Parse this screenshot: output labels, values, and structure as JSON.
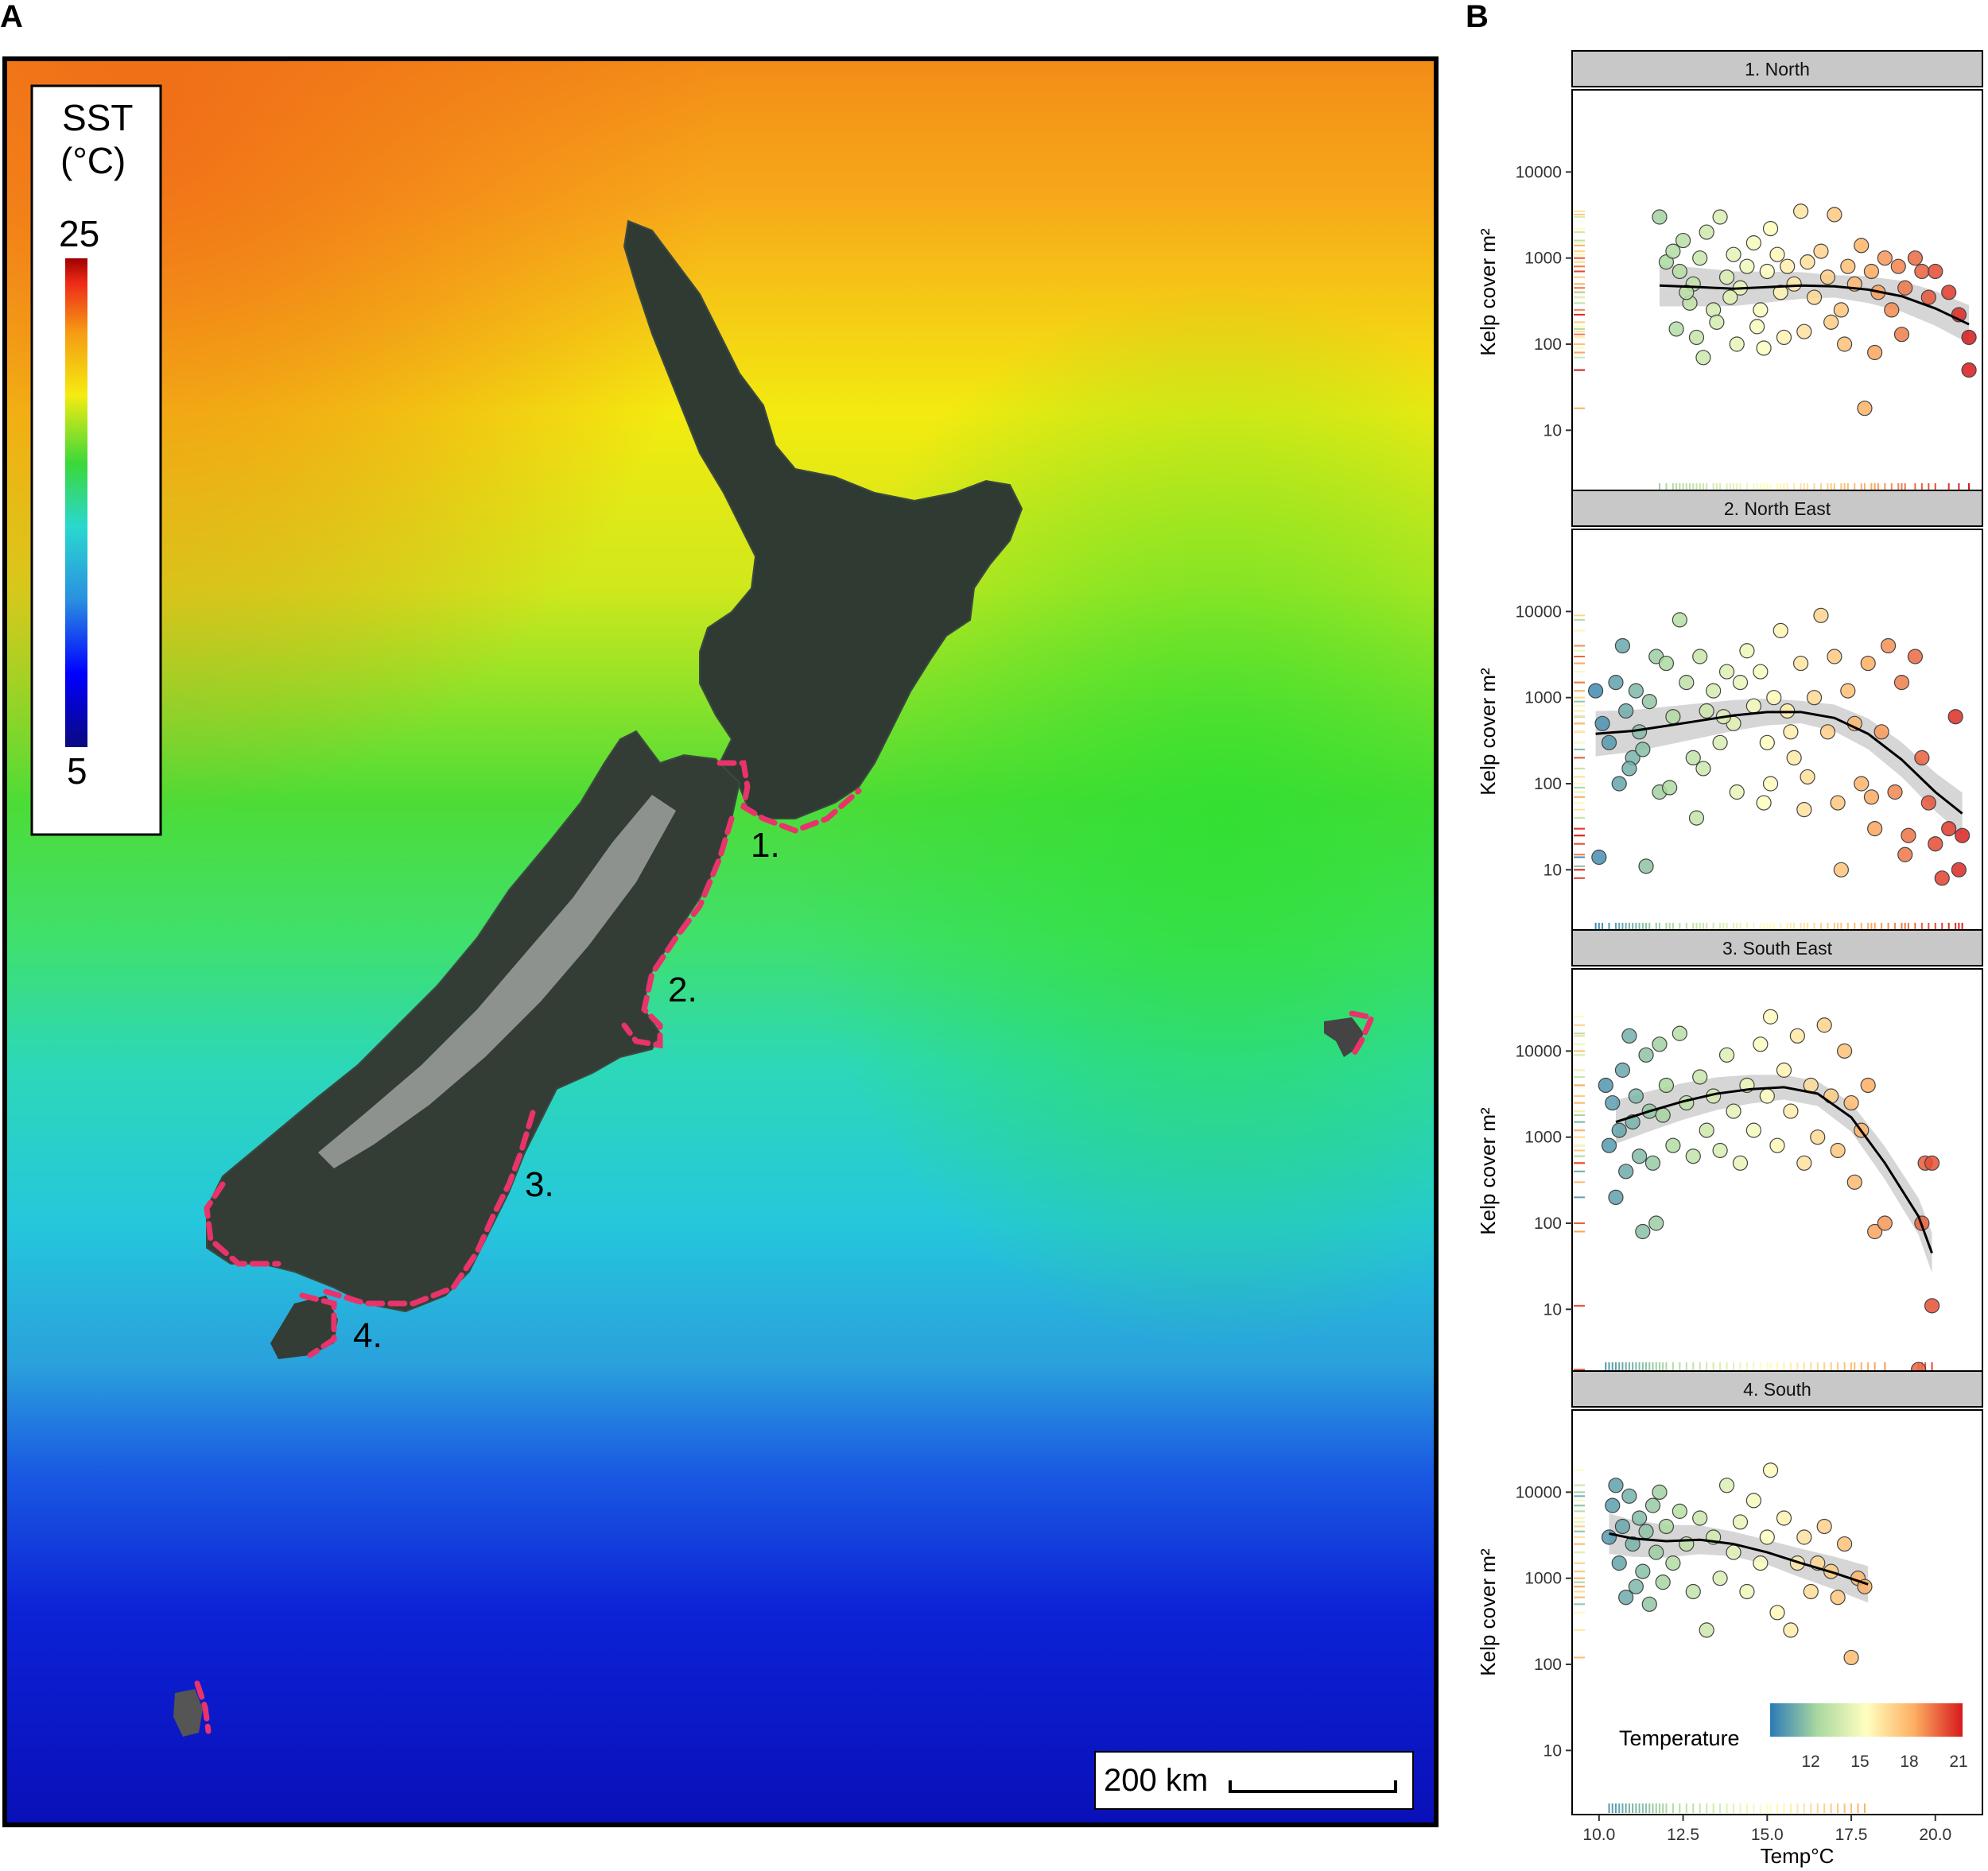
{
  "panel_a": {
    "letter": "A",
    "sst_legend": {
      "title_line1": "SST",
      "title_line2": "(°C)",
      "max_label": "25",
      "min_label": "5"
    },
    "region_labels": [
      "1.",
      "2.",
      "3.",
      "4."
    ],
    "scale_bar_label": "200 km"
  },
  "panel_b": {
    "letter": "B",
    "ylabel": "Kelp cover m²",
    "xlabel": "Temp°C",
    "legend": {
      "title": "Temperature",
      "ticks": [
        "12",
        "15",
        "18",
        "21"
      ]
    },
    "x_ticks": [
      "10.0",
      "12.5",
      "15.0",
      "17.5",
      "20.0"
    ],
    "y_ticks": [
      "10",
      "100",
      "1000",
      "10000"
    ]
  },
  "colors": {
    "route_pink": "#e8336b",
    "strip_bg": "#c8c8c8",
    "smooth_line": "#000000",
    "ci_band": "#bbbbbb"
  },
  "chart_data": [
    {
      "type": "scatter",
      "title": "1. North",
      "xlabel": "Temp°C",
      "ylabel": "Kelp cover m²",
      "xlim": [
        9.2,
        21.4
      ],
      "ylim": [
        1.8,
        90000
      ],
      "yscale": "log",
      "points": [
        [
          11.8,
          3000
        ],
        [
          12.0,
          900
        ],
        [
          12.2,
          1200
        ],
        [
          12.4,
          700
        ],
        [
          12.5,
          1600
        ],
        [
          12.7,
          300
        ],
        [
          12.8,
          500
        ],
        [
          13.0,
          1000
        ],
        [
          13.2,
          2000
        ],
        [
          13.4,
          250
        ],
        [
          13.6,
          3000
        ],
        [
          13.8,
          600
        ],
        [
          14.0,
          1100
        ],
        [
          14.2,
          450
        ],
        [
          14.4,
          800
        ],
        [
          14.6,
          1500
        ],
        [
          14.8,
          250
        ],
        [
          15.0,
          700
        ],
        [
          15.1,
          2200
        ],
        [
          15.3,
          1100
        ],
        [
          15.4,
          400
        ],
        [
          15.6,
          800
        ],
        [
          15.8,
          500
        ],
        [
          16.0,
          3500
        ],
        [
          16.2,
          900
        ],
        [
          16.4,
          350
        ],
        [
          16.6,
          1200
        ],
        [
          16.8,
          600
        ],
        [
          17.0,
          3200
        ],
        [
          17.2,
          250
        ],
        [
          17.4,
          800
        ],
        [
          17.6,
          500
        ],
        [
          17.8,
          1400
        ],
        [
          17.9,
          18
        ],
        [
          18.1,
          700
        ],
        [
          18.3,
          400
        ],
        [
          18.5,
          1000
        ],
        [
          18.7,
          250
        ],
        [
          18.9,
          800
        ],
        [
          19.1,
          450
        ],
        [
          19.4,
          1000
        ],
        [
          19.6,
          700
        ],
        [
          19.8,
          350
        ],
        [
          20.0,
          700
        ],
        [
          20.4,
          400
        ],
        [
          20.7,
          220
        ],
        [
          21.0,
          120
        ],
        [
          21.0,
          50
        ],
        [
          12.3,
          150
        ],
        [
          12.9,
          120
        ],
        [
          13.5,
          180
        ],
        [
          14.1,
          100
        ],
        [
          14.7,
          160
        ],
        [
          15.5,
          120
        ],
        [
          16.1,
          140
        ],
        [
          16.9,
          180
        ],
        [
          17.3,
          100
        ],
        [
          18.2,
          80
        ],
        [
          19.0,
          130
        ],
        [
          13.1,
          70
        ],
        [
          14.9,
          90
        ],
        [
          12.6,
          400
        ],
        [
          13.9,
          350
        ]
      ],
      "smooth": {
        "x": [
          11.8,
          13.0,
          14.0,
          15.0,
          16.0,
          17.0,
          18.0,
          19.0,
          20.0,
          21.0
        ],
        "y": [
          480,
          460,
          440,
          460,
          480,
          470,
          430,
          360,
          260,
          170
        ]
      }
    },
    {
      "type": "scatter",
      "title": "2. North East",
      "xlabel": "Temp°C",
      "ylabel": "Kelp cover m²",
      "xlim": [
        9.2,
        21.4
      ],
      "ylim": [
        1.8,
        90000
      ],
      "yscale": "log",
      "points": [
        [
          9.9,
          1200
        ],
        [
          10.0,
          14
        ],
        [
          10.1,
          500
        ],
        [
          10.3,
          300
        ],
        [
          10.5,
          1500
        ],
        [
          10.6,
          100
        ],
        [
          10.7,
          4000
        ],
        [
          10.8,
          700
        ],
        [
          11.0,
          200
        ],
        [
          11.1,
          1200
        ],
        [
          11.2,
          400
        ],
        [
          11.4,
          11
        ],
        [
          11.5,
          900
        ],
        [
          11.7,
          3000
        ],
        [
          11.8,
          80
        ],
        [
          12.0,
          2500
        ],
        [
          12.2,
          600
        ],
        [
          12.4,
          8000
        ],
        [
          12.6,
          1500
        ],
        [
          12.8,
          200
        ],
        [
          13.0,
          3000
        ],
        [
          13.2,
          700
        ],
        [
          13.4,
          1200
        ],
        [
          13.6,
          300
        ],
        [
          13.8,
          2000
        ],
        [
          14.0,
          500
        ],
        [
          14.2,
          1500
        ],
        [
          14.4,
          3500
        ],
        [
          14.6,
          800
        ],
        [
          14.8,
          2000
        ],
        [
          15.0,
          300
        ],
        [
          15.2,
          1000
        ],
        [
          15.4,
          6000
        ],
        [
          15.6,
          700
        ],
        [
          15.8,
          200
        ],
        [
          16.0,
          2500
        ],
        [
          16.2,
          120
        ],
        [
          16.4,
          1000
        ],
        [
          16.6,
          9000
        ],
        [
          16.8,
          400
        ],
        [
          17.0,
          3000
        ],
        [
          17.2,
          10
        ],
        [
          17.4,
          1200
        ],
        [
          17.6,
          500
        ],
        [
          17.8,
          100
        ],
        [
          18.0,
          2500
        ],
        [
          18.2,
          30
        ],
        [
          18.4,
          400
        ],
        [
          18.6,
          4000
        ],
        [
          18.8,
          80
        ],
        [
          19.0,
          1500
        ],
        [
          19.2,
          25
        ],
        [
          19.4,
          3000
        ],
        [
          19.6,
          200
        ],
        [
          19.8,
          60
        ],
        [
          20.0,
          20
        ],
        [
          20.2,
          8
        ],
        [
          20.4,
          30
        ],
        [
          20.6,
          600
        ],
        [
          20.7,
          10
        ],
        [
          20.8,
          25
        ],
        [
          10.9,
          150
        ],
        [
          11.3,
          250
        ],
        [
          12.1,
          90
        ],
        [
          13.1,
          150
        ],
        [
          14.1,
          80
        ],
        [
          15.1,
          100
        ],
        [
          16.1,
          50
        ],
        [
          17.1,
          60
        ],
        [
          18.1,
          70
        ],
        [
          19.1,
          15
        ],
        [
          12.9,
          40
        ],
        [
          14.9,
          60
        ],
        [
          13.7,
          600
        ],
        [
          15.7,
          400
        ]
      ],
      "smooth": {
        "x": [
          9.9,
          11.0,
          12.0,
          13.0,
          14.0,
          15.0,
          16.0,
          17.0,
          18.0,
          19.0,
          20.0,
          20.8
        ],
        "y": [
          380,
          410,
          470,
          540,
          620,
          680,
          680,
          580,
          380,
          190,
          80,
          45
        ]
      }
    },
    {
      "type": "scatter",
      "title": "3. South East",
      "xlabel": "Temp°C",
      "ylabel": "Kelp cover m²",
      "xlim": [
        9.2,
        21.4
      ],
      "ylim": [
        1.8,
        90000
      ],
      "yscale": "log",
      "points": [
        [
          10.2,
          4000
        ],
        [
          10.3,
          800
        ],
        [
          10.4,
          2500
        ],
        [
          10.5,
          200
        ],
        [
          10.6,
          1200
        ],
        [
          10.7,
          6000
        ],
        [
          10.8,
          400
        ],
        [
          10.9,
          15000
        ],
        [
          11.0,
          1500
        ],
        [
          11.1,
          3000
        ],
        [
          11.2,
          600
        ],
        [
          11.3,
          80
        ],
        [
          11.4,
          9000
        ],
        [
          11.5,
          2000
        ],
        [
          11.6,
          500
        ],
        [
          11.7,
          100
        ],
        [
          11.8,
          12000
        ],
        [
          11.9,
          1800
        ],
        [
          12.0,
          4000
        ],
        [
          12.2,
          800
        ],
        [
          12.4,
          16000
        ],
        [
          12.6,
          2500
        ],
        [
          12.8,
          600
        ],
        [
          13.0,
          5000
        ],
        [
          13.2,
          1200
        ],
        [
          13.4,
          3000
        ],
        [
          13.6,
          700
        ],
        [
          13.8,
          9000
        ],
        [
          14.0,
          2000
        ],
        [
          14.2,
          500
        ],
        [
          14.4,
          4000
        ],
        [
          14.6,
          1200
        ],
        [
          14.8,
          12000
        ],
        [
          15.0,
          3000
        ],
        [
          15.1,
          25000
        ],
        [
          15.3,
          800
        ],
        [
          15.5,
          6000
        ],
        [
          15.7,
          2000
        ],
        [
          15.9,
          15000
        ],
        [
          16.1,
          500
        ],
        [
          16.3,
          4000
        ],
        [
          16.5,
          1000
        ],
        [
          16.7,
          20000
        ],
        [
          16.9,
          3000
        ],
        [
          17.1,
          700
        ],
        [
          17.3,
          10000
        ],
        [
          17.5,
          2500
        ],
        [
          17.6,
          300
        ],
        [
          17.8,
          1200
        ],
        [
          18.0,
          4000
        ],
        [
          18.2,
          80
        ],
        [
          18.5,
          100
        ],
        [
          19.5,
          2
        ],
        [
          19.6,
          100
        ],
        [
          19.7,
          500
        ],
        [
          19.9,
          500
        ],
        [
          19.9,
          11
        ]
      ],
      "smooth": {
        "x": [
          10.5,
          11.5,
          12.5,
          13.5,
          14.5,
          15.5,
          16.5,
          17.5,
          18.5,
          19.5,
          19.9
        ],
        "y": [
          1500,
          2000,
          2600,
          3200,
          3600,
          3800,
          3200,
          1700,
          500,
          120,
          45
        ]
      }
    },
    {
      "type": "scatter",
      "title": "4. South",
      "xlabel": "Temp°C",
      "ylabel": "Kelp cover m²",
      "xlim": [
        9.2,
        21.4
      ],
      "ylim": [
        1.8,
        90000
      ],
      "yscale": "log",
      "points": [
        [
          10.3,
          3000
        ],
        [
          10.4,
          7000
        ],
        [
          10.5,
          12000
        ],
        [
          10.6,
          1500
        ],
        [
          10.7,
          4000
        ],
        [
          10.8,
          600
        ],
        [
          10.9,
          9000
        ],
        [
          11.0,
          2500
        ],
        [
          11.1,
          800
        ],
        [
          11.2,
          5000
        ],
        [
          11.3,
          1200
        ],
        [
          11.4,
          3500
        ],
        [
          11.5,
          500
        ],
        [
          11.6,
          7000
        ],
        [
          11.7,
          2000
        ],
        [
          11.8,
          10000
        ],
        [
          11.9,
          900
        ],
        [
          12.0,
          4000
        ],
        [
          12.2,
          1500
        ],
        [
          12.4,
          6000
        ],
        [
          12.6,
          2500
        ],
        [
          12.8,
          700
        ],
        [
          13.0,
          5000
        ],
        [
          13.2,
          250
        ],
        [
          13.4,
          3000
        ],
        [
          13.6,
          1000
        ],
        [
          13.8,
          12000
        ],
        [
          14.0,
          2000
        ],
        [
          14.2,
          4500
        ],
        [
          14.4,
          700
        ],
        [
          14.6,
          8000
        ],
        [
          14.8,
          1500
        ],
        [
          15.0,
          3000
        ],
        [
          15.1,
          18000
        ],
        [
          15.3,
          400
        ],
        [
          15.5,
          5000
        ],
        [
          15.7,
          250
        ],
        [
          15.9,
          1500
        ],
        [
          16.1,
          3000
        ],
        [
          16.3,
          700
        ],
        [
          16.5,
          1500
        ],
        [
          16.7,
          4000
        ],
        [
          16.9,
          1200
        ],
        [
          17.1,
          600
        ],
        [
          17.3,
          2500
        ],
        [
          17.5,
          120
        ],
        [
          17.7,
          1000
        ],
        [
          17.9,
          800
        ]
      ],
      "smooth": {
        "x": [
          10.3,
          11.0,
          12.0,
          13.0,
          14.0,
          15.0,
          16.0,
          17.0,
          18.0
        ],
        "y": [
          3300,
          2900,
          2700,
          2800,
          2500,
          2000,
          1500,
          1150,
          850
        ]
      }
    }
  ]
}
